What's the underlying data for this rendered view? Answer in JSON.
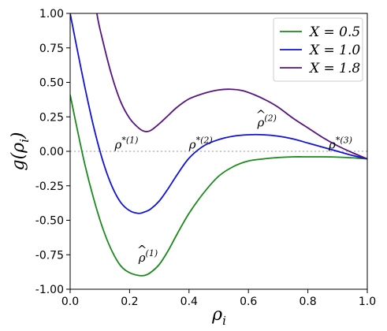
{
  "chart_data": {
    "type": "line",
    "xlabel": "ρ",
    "xlabel_sub": "i",
    "ylabel": "g(ρ",
    "ylabel_sub": "i",
    "ylabel_close": ")",
    "xlim": [
      0.0,
      1.0
    ],
    "ylim": [
      -1.0,
      1.0
    ],
    "xticks": [
      "0.0",
      "0.2",
      "0.4",
      "0.6",
      "0.8",
      "1.0"
    ],
    "yticks": [
      "1.00",
      "0.75",
      "0.50",
      "0.25",
      "0.00",
      "-0.25",
      "-0.50",
      "-0.75",
      "-1.00"
    ],
    "reference_line": {
      "y": 0.0,
      "style": "dotted",
      "color": "#bbbbbb"
    },
    "legend": {
      "position": "top-right"
    },
    "series": [
      {
        "name": "X = 0.5",
        "color": "#1a8a1a",
        "x": [
          0.0,
          0.02,
          0.05,
          0.08,
          0.11,
          0.14,
          0.17,
          0.2,
          0.23,
          0.25,
          0.27,
          0.3,
          0.33,
          0.36,
          0.4,
          0.45,
          0.5,
          0.55,
          0.6,
          0.65,
          0.7,
          0.75,
          0.8,
          0.85,
          0.9,
          0.95,
          1.0
        ],
        "y": [
          0.41,
          0.2,
          -0.1,
          -0.35,
          -0.56,
          -0.72,
          -0.83,
          -0.88,
          -0.9,
          -0.9,
          -0.88,
          -0.82,
          -0.72,
          -0.6,
          -0.45,
          -0.3,
          -0.18,
          -0.11,
          -0.07,
          -0.055,
          -0.045,
          -0.04,
          -0.04,
          -0.04,
          -0.042,
          -0.047,
          -0.055
        ]
      },
      {
        "name": "X = 1.0",
        "color": "#1010e0",
        "x": [
          0.0,
          0.02,
          0.05,
          0.08,
          0.11,
          0.14,
          0.17,
          0.2,
          0.23,
          0.25,
          0.27,
          0.3,
          0.33,
          0.36,
          0.4,
          0.45,
          0.5,
          0.55,
          0.6,
          0.65,
          0.7,
          0.75,
          0.8,
          0.85,
          0.9,
          0.95,
          1.0
        ],
        "y": [
          1.0,
          0.78,
          0.46,
          0.17,
          -0.07,
          -0.25,
          -0.37,
          -0.43,
          -0.45,
          -0.44,
          -0.42,
          -0.36,
          -0.27,
          -0.17,
          -0.05,
          0.04,
          0.085,
          0.11,
          0.12,
          0.12,
          0.11,
          0.09,
          0.06,
          0.03,
          0.0,
          -0.03,
          -0.055
        ]
      },
      {
        "name": "X = 1.8",
        "color": "#55137f",
        "x": [
          0.09,
          0.11,
          0.14,
          0.17,
          0.2,
          0.23,
          0.25,
          0.27,
          0.3,
          0.33,
          0.36,
          0.4,
          0.45,
          0.5,
          0.54,
          0.58,
          0.62,
          0.66,
          0.7,
          0.75,
          0.8,
          0.85,
          0.9,
          0.95,
          1.0
        ],
        "y": [
          1.0,
          0.8,
          0.55,
          0.36,
          0.24,
          0.17,
          0.145,
          0.15,
          0.2,
          0.26,
          0.32,
          0.38,
          0.42,
          0.445,
          0.45,
          0.44,
          0.41,
          0.37,
          0.32,
          0.24,
          0.17,
          0.1,
          0.04,
          -0.01,
          -0.055
        ]
      }
    ],
    "annotations": [
      {
        "base": "ρ",
        "sup": "*(1)",
        "hat": false,
        "x": 0.15,
        "y": 0.02
      },
      {
        "base": "ρ",
        "sup": "*(2)",
        "hat": false,
        "x": 0.4,
        "y": 0.02
      },
      {
        "base": "ρ",
        "sup": "*(3)",
        "hat": false,
        "x": 0.87,
        "y": 0.02
      },
      {
        "base": "ρ",
        "sup": "(1)",
        "hat": true,
        "x": 0.23,
        "y": -0.8
      },
      {
        "base": "ρ",
        "sup": "(2)",
        "hat": true,
        "x": 0.63,
        "y": 0.18
      }
    ]
  }
}
